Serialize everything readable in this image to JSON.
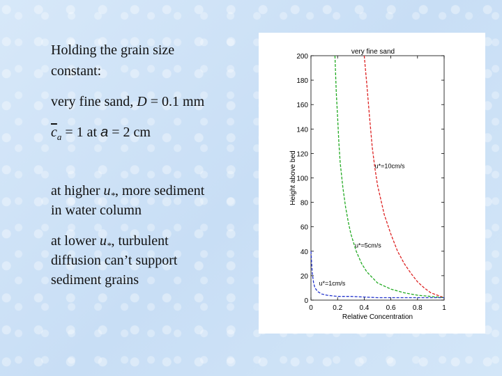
{
  "slide": {
    "line1": "Holding the grain size",
    "line2": "constant:",
    "sand_prefix": "very fine sand, ",
    "sand_var": "D",
    "sand_suffix": " = 0.1 mm",
    "ca_var": "c",
    "ca_sub": "a",
    "ca_mid": " = 1  at ",
    "a_var": "a",
    "ca_tail": " = 2 cm",
    "higher_prefix": "at higher ",
    "u_var": "u",
    "u_sub": "*",
    "higher_suffix": ", more sediment",
    "higher_line2": "in water column",
    "lower_prefix": "at lower ",
    "lower_suffix": ", turbulent",
    "lower_line2": "diffusion can’t support",
    "lower_line3": "sediment grains"
  },
  "chart_data": {
    "type": "line",
    "title": "very fine sand",
    "xlabel": "Relative Concentration",
    "ylabel": "Height above bed",
    "xlim": [
      0,
      1
    ],
    "ylim": [
      0,
      200
    ],
    "xticks": [
      "0",
      "0.2",
      "0.4",
      "0.6",
      "0.8",
      "1"
    ],
    "yticks": [
      "0",
      "20",
      "40",
      "60",
      "80",
      "100",
      "120",
      "140",
      "160",
      "180",
      "200"
    ],
    "line_style": "dashed",
    "series": [
      {
        "name": "u*=10cm/s",
        "color": "#dd2222",
        "x": [
          0.4,
          0.42,
          0.44,
          0.46,
          0.48,
          0.5,
          0.55,
          0.6,
          0.65,
          0.7,
          0.75,
          0.8,
          0.85,
          0.9,
          0.95,
          1.0
        ],
        "y": [
          200,
          176,
          150,
          125,
          108,
          94,
          70,
          54,
          40,
          30,
          22,
          15,
          10,
          6,
          4,
          2
        ]
      },
      {
        "name": "u*=5cm/s",
        "color": "#22aa22",
        "x": [
          0.18,
          0.19,
          0.2,
          0.21,
          0.22,
          0.24,
          0.26,
          0.28,
          0.3,
          0.34,
          0.38,
          0.42,
          0.5,
          0.6,
          0.7,
          0.8,
          0.9,
          1.0
        ],
        "y": [
          200,
          170,
          150,
          128,
          112,
          92,
          76,
          64,
          54,
          40,
          30,
          23,
          14,
          9,
          6,
          4,
          3,
          2
        ]
      },
      {
        "name": "u*=1cm/s",
        "color": "#2233cc",
        "x": [
          0.0,
          0.005,
          0.01,
          0.02,
          0.03,
          0.05,
          0.08,
          0.12,
          0.2,
          0.3,
          0.5,
          0.7,
          1.0
        ],
        "y": [
          40,
          30,
          22,
          14,
          10,
          7,
          5,
          4,
          3,
          3,
          2,
          2,
          2
        ]
      }
    ]
  }
}
